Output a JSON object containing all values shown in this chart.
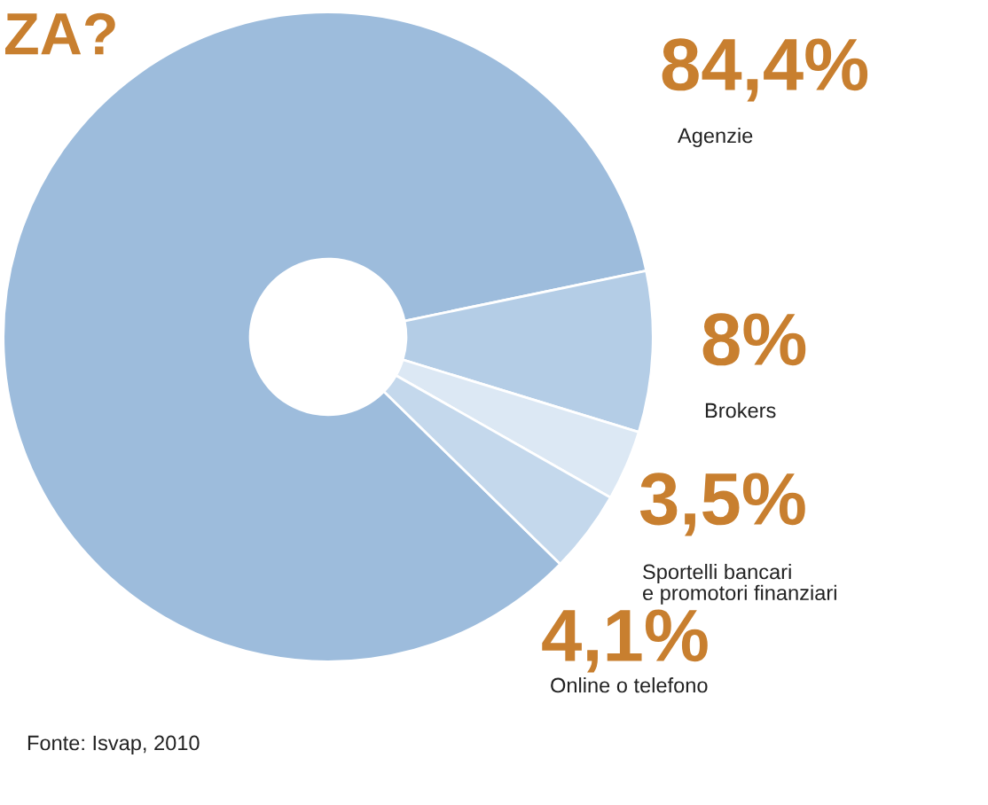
{
  "chart_data": {
    "type": "donut",
    "title": "ZA?",
    "categories": [
      "Agenzie",
      "Brokers",
      "Sportelli bancari\ne promotori finanziari",
      "Online o telefono"
    ],
    "values": [
      84.4,
      8,
      3.5,
      4.1
    ],
    "value_labels": [
      "84,4%",
      "8%",
      "3,5%",
      "4,1%"
    ],
    "colors": [
      "#9dbcdc",
      "#b4cde6",
      "#dce8f4",
      "#c4d8ec"
    ],
    "annotations": [
      "Fonte: Isvap, 2010"
    ]
  }
}
